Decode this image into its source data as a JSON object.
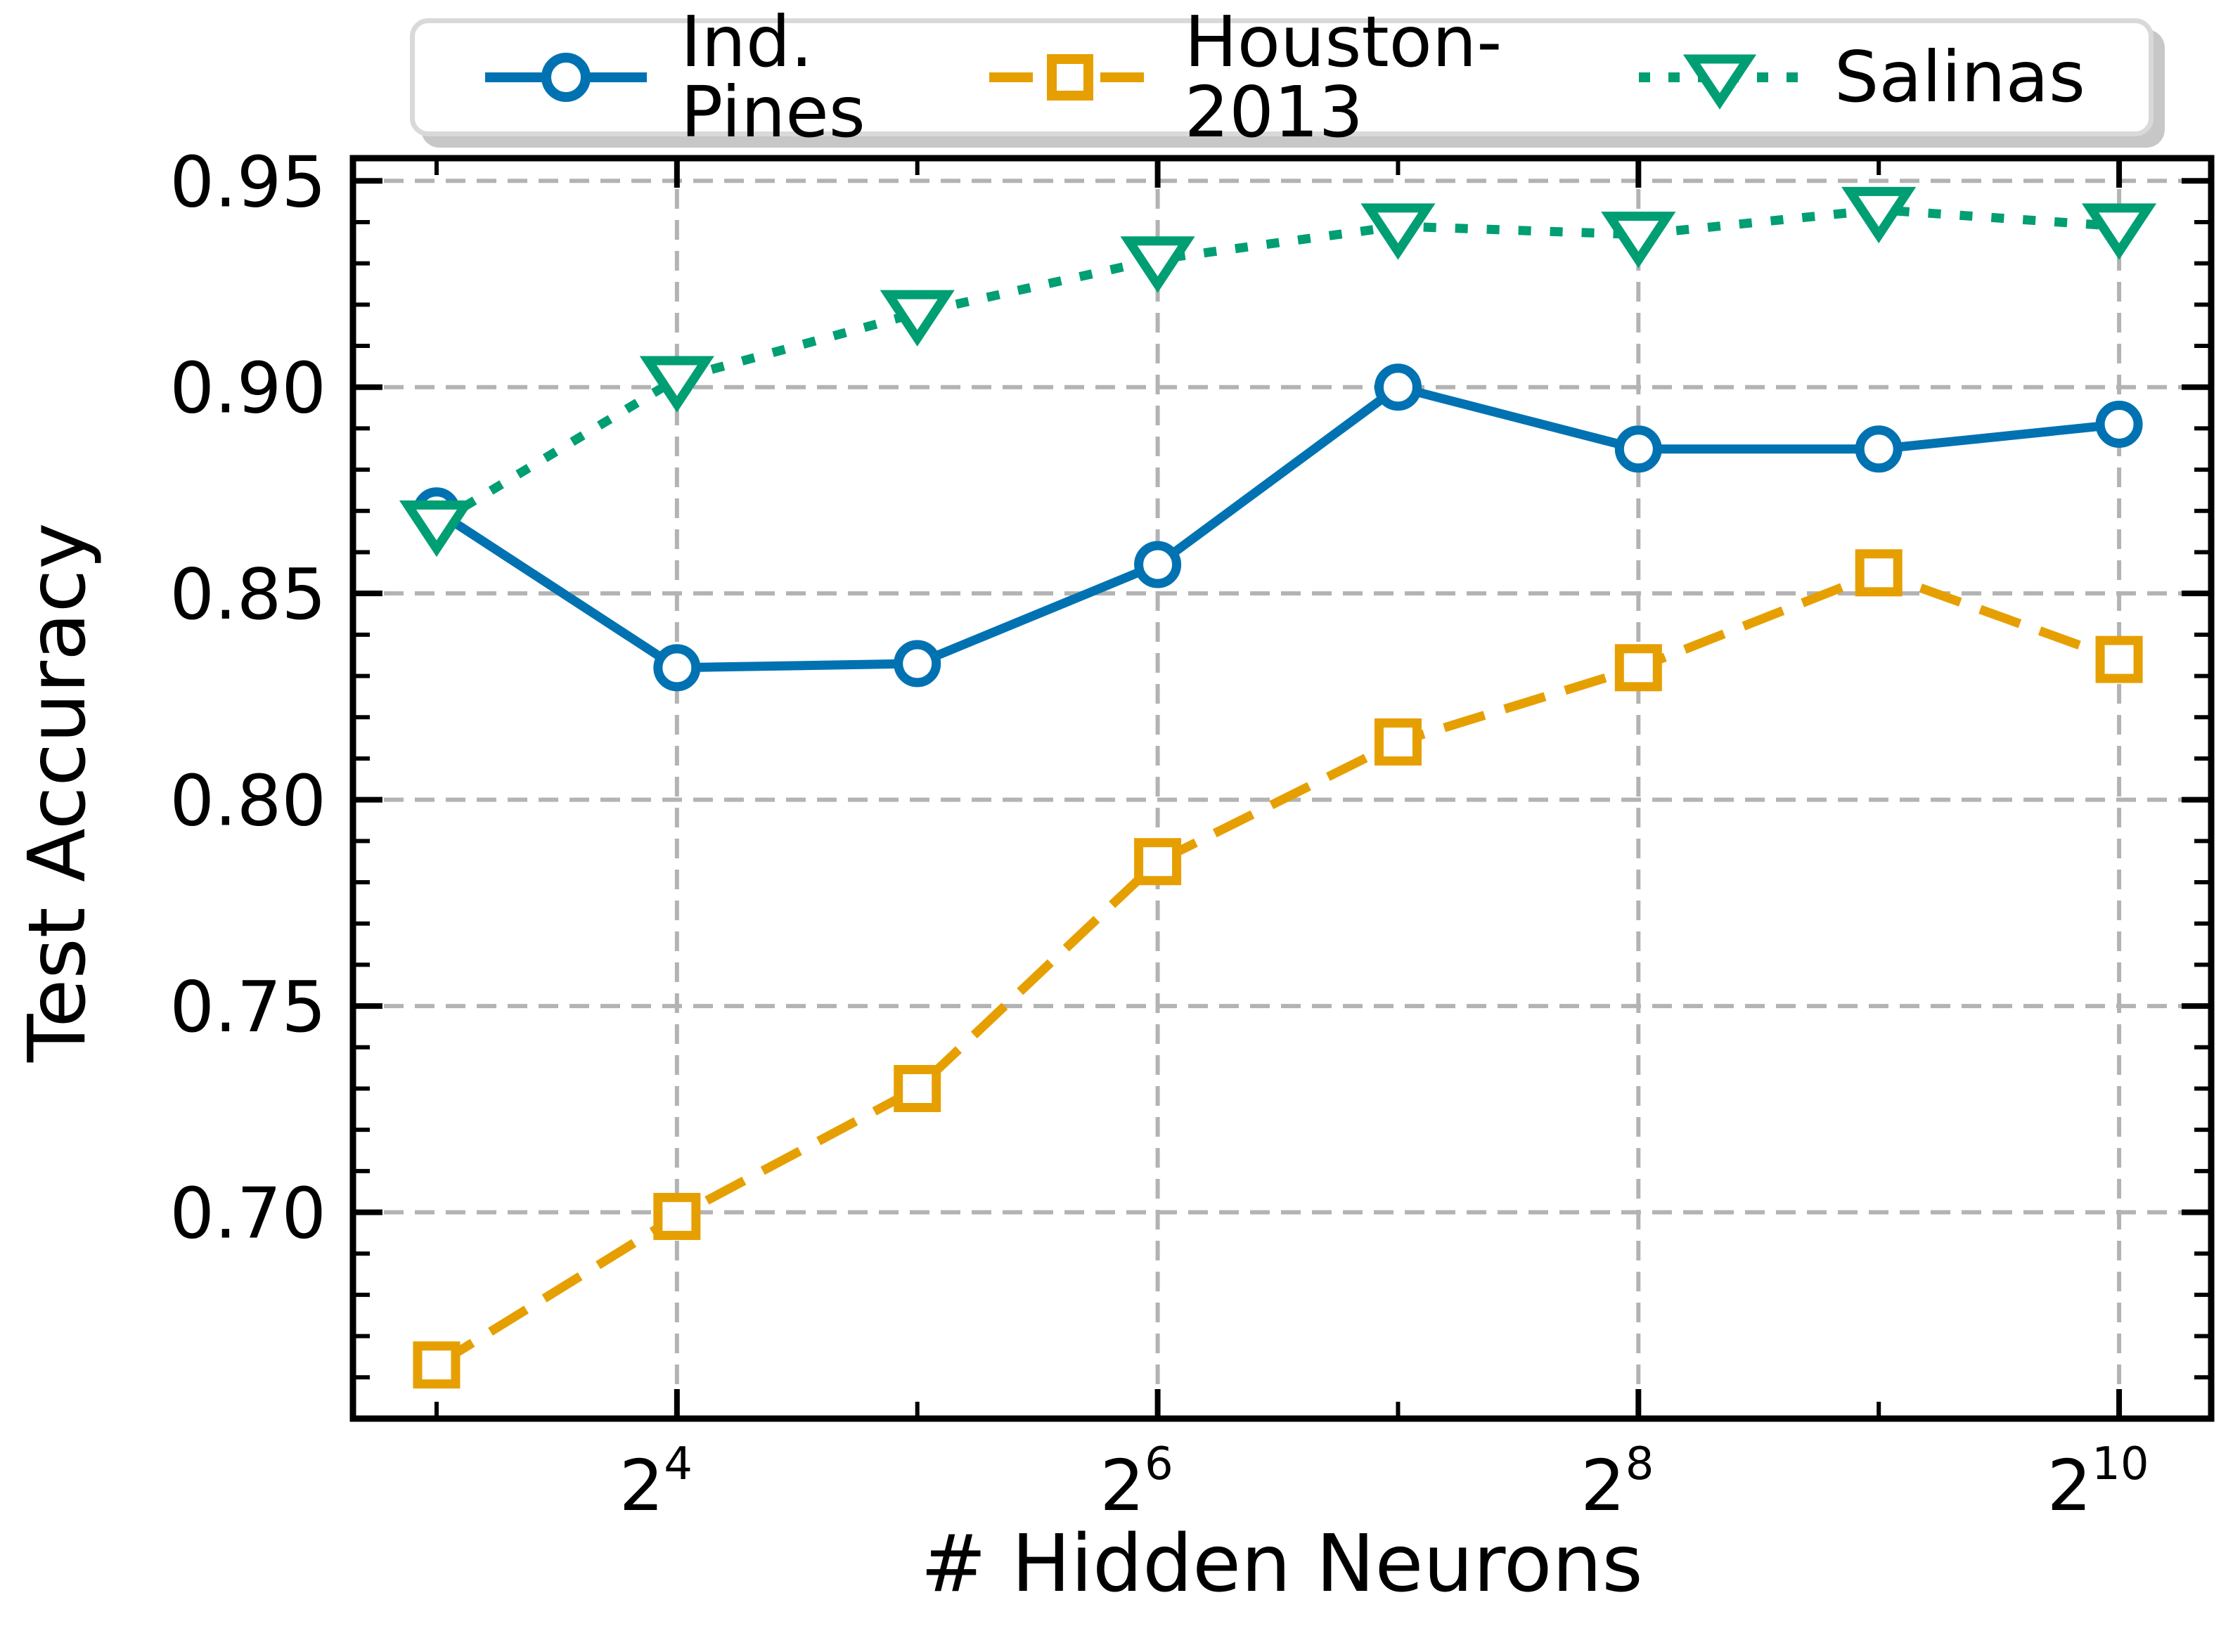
{
  "figure": {
    "background": "#ffffff",
    "axis_color": "#000000",
    "grid_color": "#b3b3b3"
  },
  "chart_data": {
    "type": "line",
    "title": "",
    "xlabel": "# Hidden Neurons",
    "ylabel": "Test Accuracy",
    "x_axis": {
      "scale": "log2",
      "base": 2,
      "exponents": [
        3,
        4,
        5,
        6,
        7,
        8,
        9,
        10
      ],
      "tick_exponents": [
        4,
        6,
        8,
        10
      ],
      "minor_tick_exponents": [
        3,
        5,
        7,
        9
      ],
      "xlim_exponents": [
        2.652,
        10.383
      ]
    },
    "y_axis": {
      "ticks": [
        0.7,
        0.75,
        0.8,
        0.85,
        0.9,
        0.95
      ],
      "tick_labels": [
        "0.70",
        "0.75",
        "0.80",
        "0.85",
        "0.90",
        "0.95"
      ],
      "minor_step": 0.01,
      "ylim": [
        0.65,
        0.9555
      ]
    },
    "grid": true,
    "legend_position": "top-center",
    "series": [
      {
        "name": "Ind. Pines",
        "color": "#0072B2",
        "line_style": "solid",
        "marker": "circle",
        "values": [
          0.87,
          0.832,
          0.833,
          0.857,
          0.9,
          0.885,
          0.885,
          0.891
        ]
      },
      {
        "name": "Houston-2013",
        "color": "#E69F00",
        "line_style": "dashed",
        "marker": "square",
        "values": [
          0.663,
          0.699,
          0.73,
          0.785,
          0.814,
          0.832,
          0.855,
          0.834
        ]
      },
      {
        "name": "Salinas",
        "color": "#009E73",
        "line_style": "dotted",
        "marker": "triangle-down",
        "values": [
          0.867,
          0.902,
          0.918,
          0.931,
          0.939,
          0.937,
          0.943,
          0.939
        ]
      }
    ]
  }
}
